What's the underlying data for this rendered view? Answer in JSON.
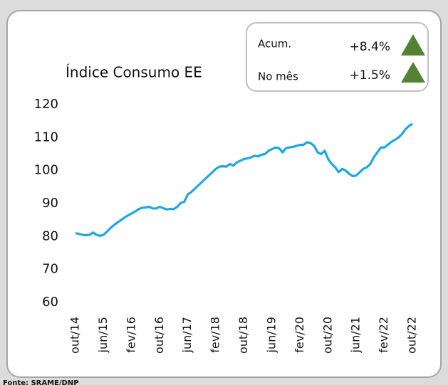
{
  "chart_data": {
    "type": "line",
    "title": "Índice Consumo EE",
    "indicators": [
      {
        "label": "Acum.",
        "value": "+8.4%"
      },
      {
        "label": "No mês",
        "value": "+1.5%"
      }
    ],
    "source": "Fonte: SRAME/DNP",
    "categories": [
      "out/14",
      null,
      null,
      null,
      null,
      null,
      null,
      null,
      "jun/15",
      null,
      null,
      null,
      null,
      null,
      null,
      null,
      "fev/16",
      null,
      null,
      null,
      null,
      null,
      null,
      null,
      "out/16",
      null,
      null,
      null,
      null,
      null,
      null,
      null,
      "jun/17",
      null,
      null,
      null,
      null,
      null,
      null,
      null,
      "fev/18",
      null,
      null,
      null,
      null,
      null,
      null,
      null,
      "out/18",
      null,
      null,
      null,
      null,
      null,
      null,
      null,
      "jun/19",
      null,
      null,
      null,
      null,
      null,
      null,
      null,
      "fev/20",
      null,
      null,
      null,
      null,
      null,
      null,
      null,
      "out/20",
      null,
      null,
      null,
      null,
      null,
      null,
      null,
      "jun/21",
      null,
      null,
      null,
      null,
      null,
      null,
      null,
      "fev/22",
      null,
      null,
      null,
      null,
      null,
      null,
      null,
      "out/22"
    ],
    "series": [
      {
        "name": "Índice Consumo EE",
        "color": "#1ea7e1",
        "values": [
          81,
          80.8,
          80.5,
          80.4,
          80.5,
          81.2,
          80.5,
          80.2,
          80.5,
          81.5,
          82.6,
          83.5,
          84.3,
          85,
          85.8,
          86.4,
          87,
          87.6,
          88.3,
          88.7,
          88.8,
          89,
          88.5,
          88.5,
          89,
          88.6,
          88.2,
          88.4,
          88.3,
          89,
          90.2,
          90.5,
          92.8,
          93.5,
          94.5,
          95.5,
          96.5,
          97.5,
          98.5,
          99.5,
          100.5,
          101.2,
          101.3,
          101.2,
          102,
          101.5,
          102.5,
          103,
          103.5,
          103.7,
          104,
          104.5,
          104.3,
          104.8,
          105,
          106,
          106.5,
          107,
          106.8,
          105.5,
          106.8,
          107,
          107.2,
          107.5,
          107.8,
          107.8,
          108.6,
          108.3,
          107.5,
          105.5,
          105,
          106,
          103.5,
          102,
          101,
          99.5,
          100.5,
          100,
          99,
          98.3,
          98.5,
          99.5,
          100.5,
          101,
          102,
          104,
          105.5,
          107,
          107,
          107.8,
          108.7,
          109.3,
          110,
          111,
          112.5,
          113.5,
          114.2
        ]
      }
    ],
    "ylim": [
      60,
      120
    ],
    "yticks": [
      60,
      70,
      80,
      90,
      100,
      110,
      120
    ],
    "grid": false
  }
}
